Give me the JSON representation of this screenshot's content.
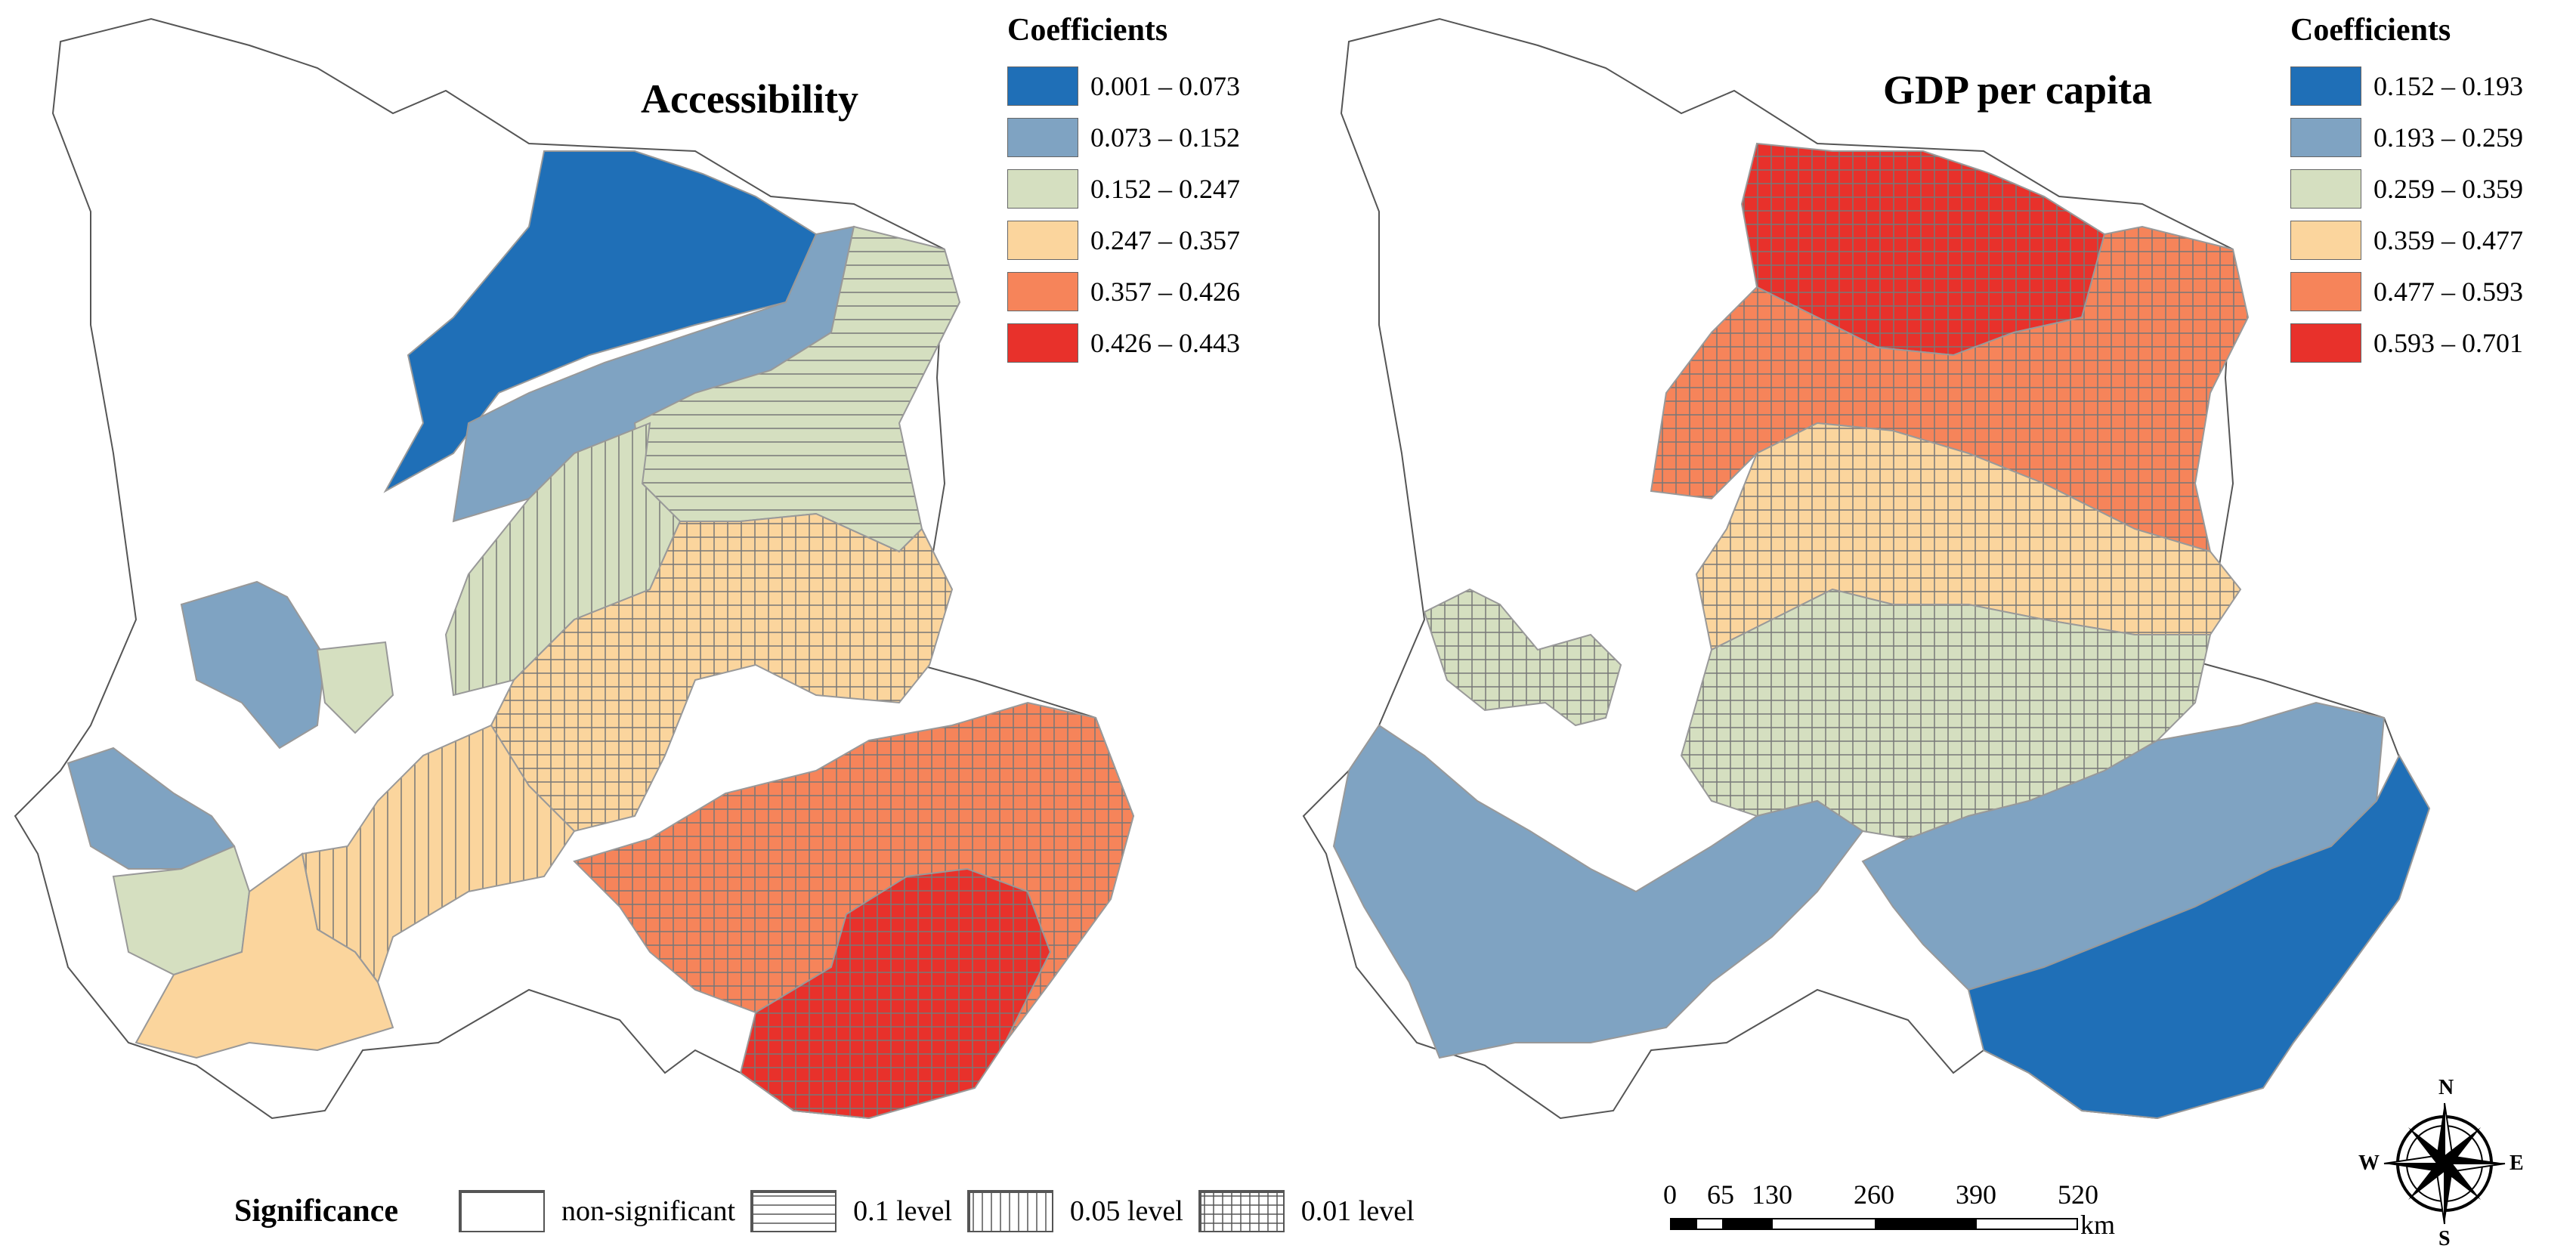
{
  "panels": [
    {
      "title": "Accessibility",
      "legend_title": "Coefficients",
      "classes": [
        {
          "label": "0.001 – 0.073",
          "color": "#1f6fb7"
        },
        {
          "label": "0.073 – 0.152",
          "color": "#7fa3c2"
        },
        {
          "label": "0.152 – 0.247",
          "color": "#d5dfc0"
        },
        {
          "label": "0.247 – 0.357",
          "color": "#fbd59d"
        },
        {
          "label": "0.357 – 0.426",
          "color": "#f6845a"
        },
        {
          "label": "0.426 – 0.443",
          "color": "#e8312b"
        }
      ]
    },
    {
      "title": "GDP per capita",
      "legend_title": "Coefficients",
      "classes": [
        {
          "label": "0.152 – 0.193",
          "color": "#1f6fb7"
        },
        {
          "label": "0.193 – 0.259",
          "color": "#7fa3c2"
        },
        {
          "label": "0.259 – 0.359",
          "color": "#d5dfc0"
        },
        {
          "label": "0.359 – 0.477",
          "color": "#fbd59d"
        },
        {
          "label": "0.477 – 0.593",
          "color": "#f6845a"
        },
        {
          "label": "0.593 – 0.701",
          "color": "#e8312b"
        }
      ]
    }
  ],
  "significance": {
    "title": "Significance",
    "items": [
      {
        "label": "non-significant",
        "pattern": "none"
      },
      {
        "label": "0.1 level",
        "pattern": "horizontal"
      },
      {
        "label": "0.05 level",
        "pattern": "vertical"
      },
      {
        "label": "0.01 level",
        "pattern": "grid"
      }
    ]
  },
  "scale_bar": {
    "ticks": [
      "0",
      "65",
      "130",
      "260",
      "390",
      "520"
    ],
    "unit": "km"
  },
  "compass": {
    "n": "N",
    "s": "S",
    "e": "E",
    "w": "W"
  }
}
